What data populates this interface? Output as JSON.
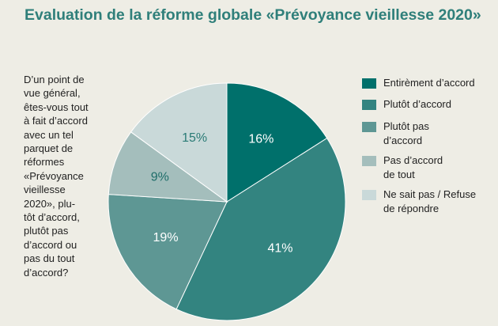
{
  "chart_data": {
    "type": "pie",
    "title": "Evaluation de la réforme globale «Prévoyance vieillesse 2020»",
    "question": "D’un point de\nvue général,\nêtes-vous tout\nà fait d’accord\navec un tel\nparquet de\nréformes\n«Prévoyance\nvieillesse\n2020», plu-\ntôt d’accord,\nplutôt pas\nd’accord ou\npas du tout\nd’accord?",
    "series": [
      {
        "name": "Entirèment d’accord",
        "color": "#00706b",
        "values": [
          16
        ],
        "value_labels": [
          "16%"
        ],
        "label_color": "#ffffff"
      },
      {
        "name": "Plutôt d’accord",
        "color": "#338480",
        "values": [
          41
        ],
        "value_labels": [
          "41%"
        ],
        "label_color": "#ffffff"
      },
      {
        "name": "Plutôt pas\nd’accord",
        "color": "#5e9794",
        "values": [
          19
        ],
        "value_labels": [
          "19%"
        ],
        "label_color": "#ffffff"
      },
      {
        "name": "Pas d’accord\nde tout",
        "color": "#a4bebc",
        "values": [
          9
        ],
        "value_labels": [
          "9%"
        ],
        "label_color": "#1f6e6a"
      },
      {
        "name": "Ne sait pas / Refuse\nde répondre",
        "color": "#c9d9d9",
        "values": [
          15
        ],
        "value_labels": [
          "15%"
        ],
        "label_color": "#2a7b76"
      }
    ]
  }
}
